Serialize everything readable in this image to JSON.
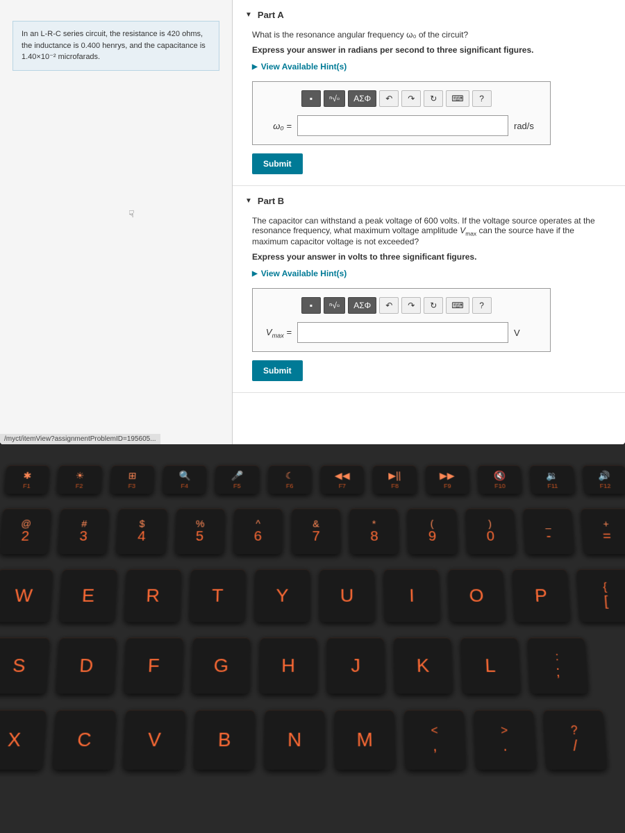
{
  "problem": {
    "text": "In an L-R-C series circuit, the resistance is 420 ohms, the inductance is 0.400 henrys, and the capacitance is 1.40×10⁻² microfarads."
  },
  "partA": {
    "title": "Part A",
    "question": "What is the resonance angular frequency ω₀ of the circuit?",
    "instruction": "Express your answer in radians per second to three significant figures.",
    "hints_label": "View Available Hint(s)",
    "var_label": "ω₀ =",
    "unit": "rad/s",
    "submit": "Submit",
    "toolbar": {
      "template": "▪",
      "root": "ⁿ√▫",
      "greek": "ΑΣΦ",
      "undo": "↶",
      "redo": "↷",
      "reset": "↻",
      "keyboard": "⌨",
      "help": "?"
    }
  },
  "partB": {
    "title": "Part B",
    "question": "The capacitor can withstand a peak voltage of 600 volts. If the voltage source operates at the resonance frequency, what maximum voltage amplitude Vmax can the source have if the maximum capacitor voltage is not exceeded?",
    "instruction": "Express your answer in volts to three significant figures.",
    "hints_label": "View Available Hint(s)",
    "var_label": "Vmax =",
    "unit": "V",
    "submit": "Submit"
  },
  "status_url": "/myct/itemView?assignmentProblemID=195605...",
  "keyboard": {
    "fn_row": [
      {
        "icon": "✱",
        "label": "F1"
      },
      {
        "icon": "☀",
        "label": "F2"
      },
      {
        "icon": "⊞",
        "label": "F3"
      },
      {
        "icon": "🔍",
        "label": "F4"
      },
      {
        "icon": "🎤",
        "label": "F5"
      },
      {
        "icon": "☾",
        "label": "F6"
      },
      {
        "icon": "◀◀",
        "label": "F7"
      },
      {
        "icon": "▶||",
        "label": "F8"
      },
      {
        "icon": "▶▶",
        "label": "F9"
      },
      {
        "icon": "🔇",
        "label": "F10"
      },
      {
        "icon": "🔉",
        "label": "F11"
      },
      {
        "icon": "🔊",
        "label": "F12"
      }
    ],
    "num_row": [
      {
        "sym": "@",
        "num": "2"
      },
      {
        "sym": "#",
        "num": "3"
      },
      {
        "sym": "$",
        "num": "4"
      },
      {
        "sym": "%",
        "num": "5"
      },
      {
        "sym": "^",
        "num": "6"
      },
      {
        "sym": "&",
        "num": "7"
      },
      {
        "sym": "*",
        "num": "8"
      },
      {
        "sym": "(",
        "num": "9"
      },
      {
        "sym": ")",
        "num": "0"
      },
      {
        "sym": "_",
        "num": "-"
      },
      {
        "sym": "+",
        "num": "="
      }
    ],
    "row1": [
      "W",
      "E",
      "R",
      "T",
      "Y",
      "U",
      "I",
      "O",
      "P"
    ],
    "row1_extra": {
      "top": "{",
      "bot": "["
    },
    "row2": [
      "S",
      "D",
      "F",
      "G",
      "H",
      "J",
      "K",
      "L"
    ],
    "row2_extra": {
      "top": ":",
      "bot": ";"
    },
    "row3": [
      "X",
      "C",
      "V",
      "B",
      "N",
      "M"
    ],
    "row3_extras": [
      {
        "top": "<",
        "bot": ","
      },
      {
        "top": ">",
        "bot": "."
      },
      {
        "top": "?",
        "bot": "/"
      }
    ]
  }
}
